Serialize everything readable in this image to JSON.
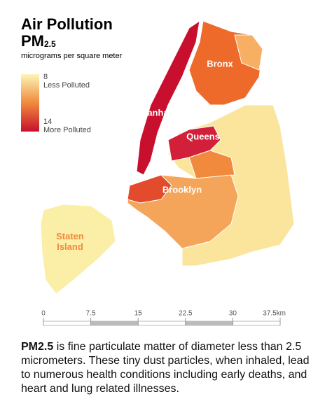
{
  "header": {
    "title": "Air Pollution",
    "measure": "PM",
    "measure_sub": "2.5",
    "units": "micrograms per square meter"
  },
  "legend": {
    "low": 8,
    "low_label": "Less Polluted",
    "high": 14,
    "high_label": "More Polluted",
    "colors": [
      "#fdf4b8",
      "#c8102e"
    ]
  },
  "map": {
    "labels": [
      "Bronx",
      "Manhattan",
      "Queens",
      "Brooklyn",
      "Staten Island"
    ]
  },
  "scale_bar": {
    "ticks": [
      0,
      7.5,
      15,
      22.5,
      30,
      {
        "value": 37.5,
        "label": "37.5km"
      }
    ]
  },
  "description": {
    "term": "PM2.5",
    "text": "is fine particulate matter of diameter less than 2.5 micrometers. These tiny dust particles, when inhaled, lead to numerous health conditions including early deaths, and heart and lung related illnesses."
  }
}
